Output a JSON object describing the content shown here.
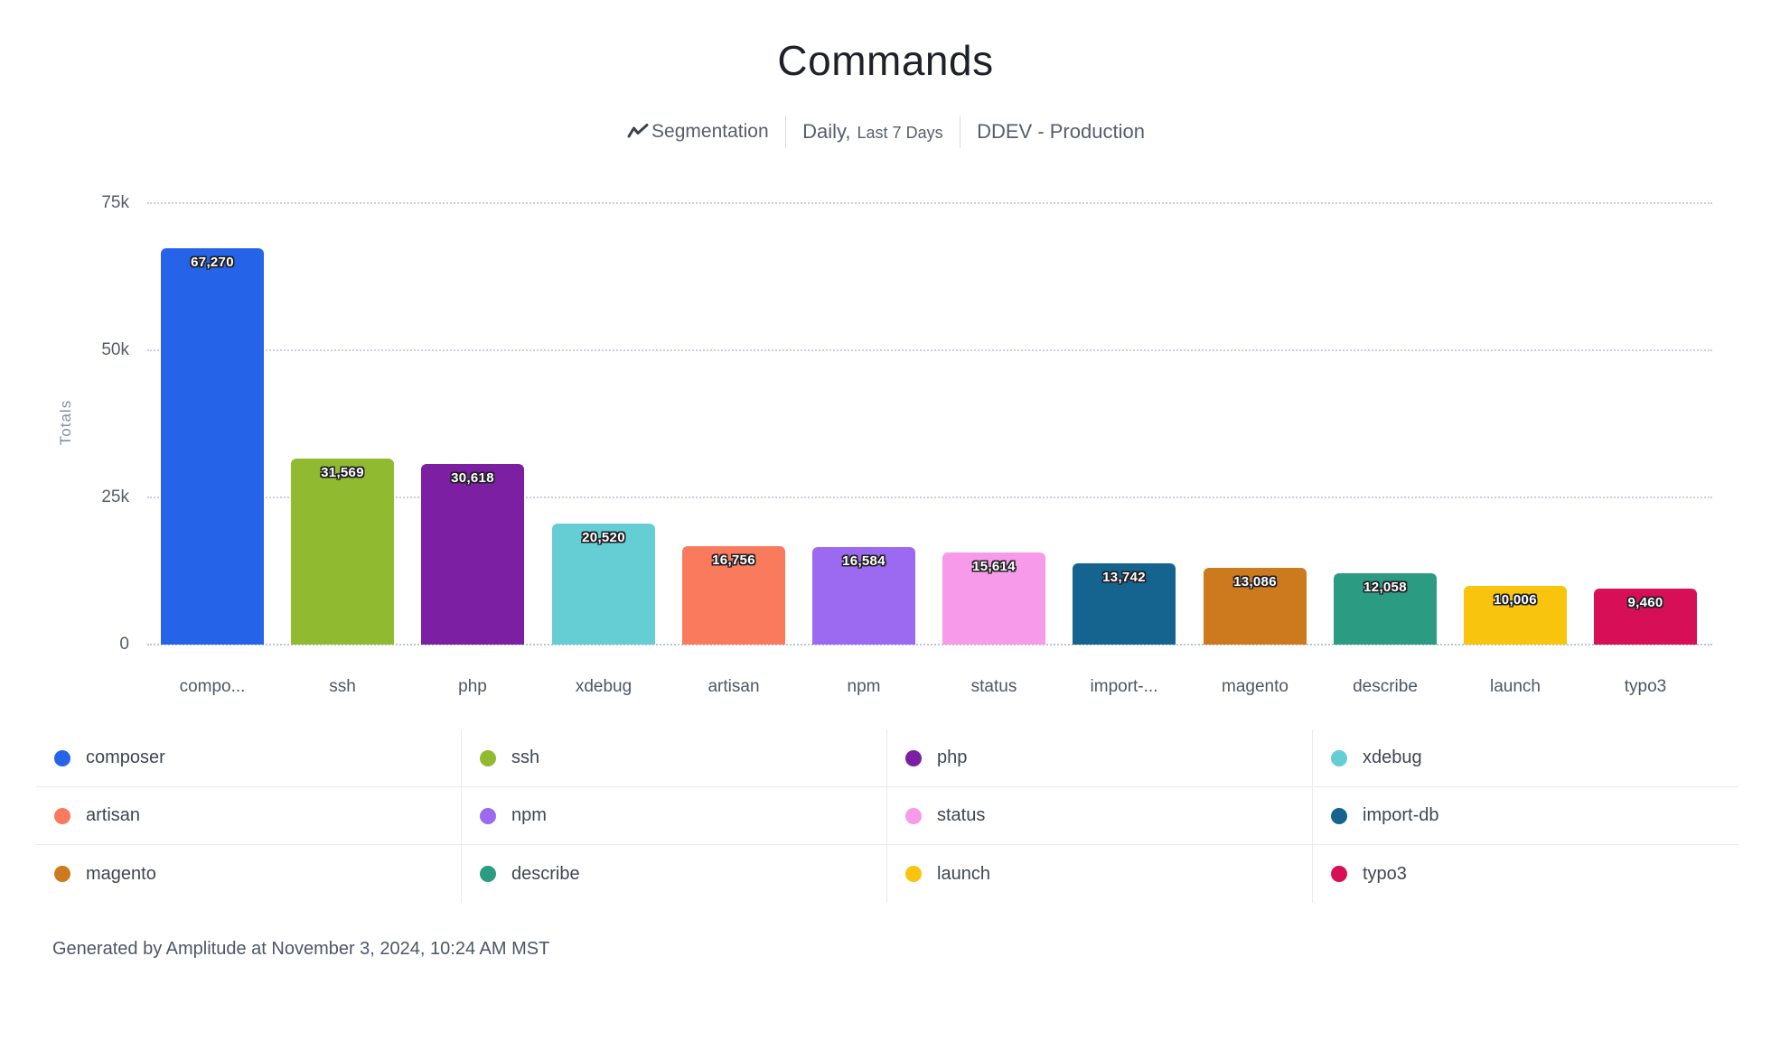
{
  "header": {
    "title": "Commands",
    "segmentation_label": "Segmentation",
    "interval_label": "Daily,",
    "range_label": "Last 7 Days",
    "project_label": "DDEV - Production"
  },
  "footer": {
    "text": "Generated by Amplitude at November 3, 2024, 10:24 AM MST"
  },
  "chart_data": {
    "type": "bar",
    "title": "Commands",
    "xlabel": "",
    "ylabel": "Totals",
    "ylim": [
      0,
      75000
    ],
    "grid": "horizontal dotted",
    "legend_position": "bottom",
    "yticks": [
      {
        "value": 75000,
        "label": "75k"
      },
      {
        "value": 50000,
        "label": "50k"
      },
      {
        "value": 25000,
        "label": "25k"
      },
      {
        "value": 0,
        "label": "0"
      }
    ],
    "categories": [
      "compo...",
      "ssh",
      "php",
      "xdebug",
      "artisan",
      "npm",
      "status",
      "import-...",
      "magento",
      "describe",
      "launch",
      "typo3"
    ],
    "series": [
      {
        "name": "composer",
        "axis_label": "compo...",
        "value": 67270,
        "value_label": "67,270",
        "color": "#2563e8"
      },
      {
        "name": "ssh",
        "axis_label": "ssh",
        "value": 31569,
        "value_label": "31,569",
        "color": "#90ba30"
      },
      {
        "name": "php",
        "axis_label": "php",
        "value": 30618,
        "value_label": "30,618",
        "color": "#7c1fa2"
      },
      {
        "name": "xdebug",
        "axis_label": "xdebug",
        "value": 20520,
        "value_label": "20,520",
        "color": "#65cdd4"
      },
      {
        "name": "artisan",
        "axis_label": "artisan",
        "value": 16756,
        "value_label": "16,756",
        "color": "#fa7a5e"
      },
      {
        "name": "npm",
        "axis_label": "npm",
        "value": 16584,
        "value_label": "16,584",
        "color": "#9c6af0"
      },
      {
        "name": "status",
        "axis_label": "status",
        "value": 15614,
        "value_label": "15,614",
        "color": "#f79ae9"
      },
      {
        "name": "import-db",
        "axis_label": "import-...",
        "value": 13742,
        "value_label": "13,742",
        "color": "#15638f"
      },
      {
        "name": "magento",
        "axis_label": "magento",
        "value": 13086,
        "value_label": "13,086",
        "color": "#cd7a1e"
      },
      {
        "name": "describe",
        "axis_label": "describe",
        "value": 12058,
        "value_label": "12,058",
        "color": "#2b9c82"
      },
      {
        "name": "launch",
        "axis_label": "launch",
        "value": 10006,
        "value_label": "10,006",
        "color": "#f9c40d"
      },
      {
        "name": "typo3",
        "axis_label": "typo3",
        "value": 9460,
        "value_label": "9,460",
        "color": "#d60f56"
      }
    ]
  },
  "legend": {
    "items": [
      {
        "label": "composer",
        "color": "#2563e8"
      },
      {
        "label": "ssh",
        "color": "#90ba30"
      },
      {
        "label": "php",
        "color": "#7c1fa2"
      },
      {
        "label": "xdebug",
        "color": "#65cdd4"
      },
      {
        "label": "artisan",
        "color": "#fa7a5e"
      },
      {
        "label": "npm",
        "color": "#9c6af0"
      },
      {
        "label": "status",
        "color": "#f79ae9"
      },
      {
        "label": "import-db",
        "color": "#15638f"
      },
      {
        "label": "magento",
        "color": "#cd7a1e"
      },
      {
        "label": "describe",
        "color": "#2b9c82"
      },
      {
        "label": "launch",
        "color": "#f9c40d"
      },
      {
        "label": "typo3",
        "color": "#d60f56"
      }
    ]
  }
}
